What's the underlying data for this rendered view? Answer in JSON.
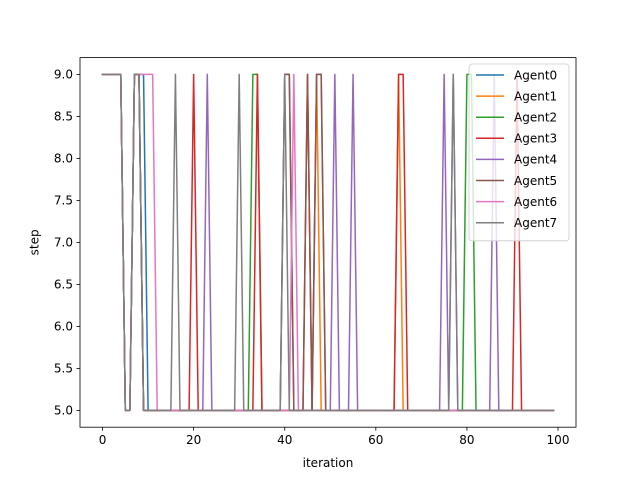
{
  "chart_data": {
    "type": "line",
    "title": "",
    "xlabel": "iteration",
    "ylabel": "step",
    "xlim": [
      -4.95,
      103.95
    ],
    "ylim": [
      4.8,
      9.2
    ],
    "xticks": [
      0,
      20,
      40,
      60,
      80,
      100
    ],
    "yticks": [
      "5.0",
      "5.5",
      "6.0",
      "6.5",
      "7.0",
      "7.5",
      "8.0",
      "8.5",
      "9.0"
    ],
    "grid": false,
    "legend_position": "top-right",
    "series": [
      {
        "name": "Agent0",
        "color": "#1f77b4",
        "spikes": [
          10
        ],
        "start": [
          [
            0,
            9
          ],
          [
            4,
            9
          ],
          [
            5,
            5
          ],
          [
            6,
            5
          ],
          [
            7,
            9
          ],
          [
            8,
            9
          ],
          [
            9,
            9
          ],
          [
            10,
            5
          ]
        ]
      },
      {
        "name": "Agent1",
        "color": "#ff7f0e",
        "spikes": [
          47,
          65
        ],
        "start": [
          [
            0,
            9
          ],
          [
            4,
            9
          ],
          [
            5,
            5
          ],
          [
            6,
            5
          ],
          [
            7,
            9
          ],
          [
            8,
            9
          ],
          [
            9,
            5
          ]
        ]
      },
      {
        "name": "Agent2",
        "color": "#2ca02c",
        "spikes": [
          33,
          34,
          80,
          81
        ],
        "start": [
          [
            0,
            9
          ],
          [
            4,
            9
          ],
          [
            5,
            5
          ],
          [
            6,
            5
          ],
          [
            7,
            9
          ],
          [
            8,
            9
          ],
          [
            9,
            5
          ]
        ]
      },
      {
        "name": "Agent3",
        "color": "#d62728",
        "spikes": [
          20,
          34,
          45,
          65,
          66,
          91
        ],
        "start": [
          [
            0,
            9
          ],
          [
            4,
            9
          ],
          [
            5,
            5
          ],
          [
            6,
            5
          ],
          [
            7,
            9
          ],
          [
            8,
            9
          ],
          [
            9,
            5
          ]
        ]
      },
      {
        "name": "Agent4",
        "color": "#9467bd",
        "spikes": [
          23,
          40,
          41,
          47,
          48,
          51,
          55,
          75,
          77,
          86
        ],
        "start": [
          [
            0,
            9
          ],
          [
            4,
            9
          ],
          [
            5,
            5
          ],
          [
            6,
            5
          ],
          [
            7,
            9
          ],
          [
            8,
            9
          ],
          [
            9,
            5
          ]
        ]
      },
      {
        "name": "Agent5",
        "color": "#8c564b",
        "spikes": [
          40,
          41,
          45,
          47,
          48
        ],
        "start": [
          [
            0,
            9
          ],
          [
            4,
            9
          ],
          [
            5,
            5
          ],
          [
            6,
            5
          ],
          [
            7,
            9
          ],
          [
            8,
            9
          ],
          [
            9,
            5
          ]
        ]
      },
      {
        "name": "Agent6",
        "color": "#e377c2",
        "spikes": [
          12,
          42
        ],
        "start": [
          [
            0,
            9
          ],
          [
            4,
            9
          ],
          [
            5,
            5
          ],
          [
            6,
            5
          ],
          [
            7,
            9
          ],
          [
            8,
            9
          ],
          [
            9,
            9
          ],
          [
            10,
            9
          ],
          [
            11,
            9
          ],
          [
            12,
            5
          ]
        ]
      },
      {
        "name": "Agent7",
        "color": "#7f7f7f",
        "spikes": [
          16,
          30,
          40,
          77
        ],
        "start": [
          [
            0,
            9
          ],
          [
            4,
            9
          ],
          [
            5,
            5
          ],
          [
            6,
            5
          ],
          [
            7,
            9
          ],
          [
            8,
            9
          ],
          [
            9,
            5
          ]
        ]
      }
    ],
    "x_end": 99,
    "base_value": 5,
    "peak_value": 9
  }
}
